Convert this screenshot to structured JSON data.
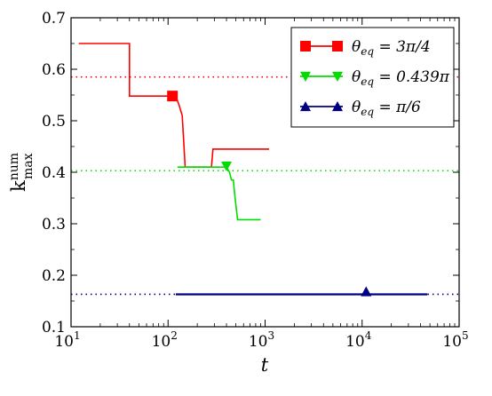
{
  "chart_data": {
    "type": "line",
    "xscale": "log",
    "xlim": [
      10,
      100000
    ],
    "ylim": [
      0.1,
      0.7
    ],
    "xlabel": "t",
    "ylabel": {
      "base": "k",
      "sup": "num",
      "sub": "max"
    },
    "x_tick_labels": [
      {
        "base": "10",
        "exp": "1",
        "value": 10
      },
      {
        "base": "10",
        "exp": "2",
        "value": 100
      },
      {
        "base": "10",
        "exp": "3",
        "value": 1000
      },
      {
        "base": "10",
        "exp": "4",
        "value": 10000
      },
      {
        "base": "10",
        "exp": "5",
        "value": 100000
      }
    ],
    "y_ticks": [
      0.1,
      0.2,
      0.3,
      0.4,
      0.5,
      0.6,
      0.7
    ],
    "y_tick_labels": [
      "0.1",
      "0.2",
      "0.3",
      "0.4",
      "0.5",
      "0.6",
      "0.7"
    ],
    "grid": false,
    "legend_position": "top-right",
    "series": [
      {
        "name": "θ_eq = 3π/4",
        "legend_label": {
          "prefix": "θ",
          "sub": "eq",
          "rest": " = 3π/4"
        },
        "color": "#ff0000",
        "marker": "square",
        "marker_point": [
          111,
          0.548
        ],
        "reference_y": 0.585,
        "x": [
          12,
          40,
          40,
          120,
          130,
          140,
          150,
          280,
          290,
          1100
        ],
        "y": [
          0.65,
          0.65,
          0.548,
          0.548,
          0.53,
          0.51,
          0.41,
          0.41,
          0.445,
          0.445
        ]
      },
      {
        "name": "θ_eq = 0.439π",
        "legend_label": {
          "prefix": "θ",
          "sub": "eq",
          "rest": " = 0.439π"
        },
        "color": "#00dd00",
        "marker": "triangle-down",
        "marker_point": [
          400,
          0.412
        ],
        "reference_y": 0.403,
        "x": [
          125,
          400,
          430,
          450,
          470,
          490,
          520,
          900
        ],
        "y": [
          0.41,
          0.41,
          0.4,
          0.385,
          0.385,
          0.35,
          0.308,
          0.308
        ]
      },
      {
        "name": "θ_eq = π/6",
        "legend_label": {
          "prefix": "θ",
          "sub": "eq",
          "rest": " = π/6"
        },
        "color": "#000080",
        "marker": "triangle-up",
        "marker_point": [
          11000,
          0.168
        ],
        "reference_y": 0.163,
        "x": [
          120,
          47000
        ],
        "y": [
          0.163,
          0.163
        ]
      }
    ]
  }
}
